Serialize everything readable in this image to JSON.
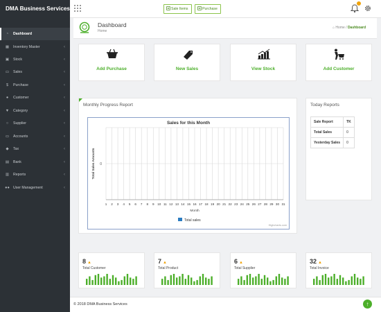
{
  "app": {
    "title": "DMA Business Services"
  },
  "topbar": {
    "sale_items_label": "Sale Items",
    "purchase_label": "Purchase"
  },
  "sidebar": {
    "items": [
      {
        "label": "Dashboard",
        "icon": "tachometer-icon",
        "active": true
      },
      {
        "label": "Inventory Master",
        "icon": "grid-icon",
        "has_children": true
      },
      {
        "label": "Stock",
        "icon": "cubes-icon",
        "has_children": true
      },
      {
        "label": "Sales",
        "icon": "cash-icon",
        "has_children": true
      },
      {
        "label": "Purchase",
        "icon": "dollar-icon",
        "has_children": true
      },
      {
        "label": "Customer",
        "icon": "user-icon",
        "has_children": true
      },
      {
        "label": "Category",
        "icon": "filter-icon",
        "has_children": true
      },
      {
        "label": "Supplier",
        "icon": "user-outline-icon",
        "has_children": true
      },
      {
        "label": "Accounts",
        "icon": "money-icon",
        "has_children": true
      },
      {
        "label": "Tax",
        "icon": "tag-icon",
        "has_children": true
      },
      {
        "label": "Bank",
        "icon": "bank-icon",
        "has_children": true
      },
      {
        "label": "Reports",
        "icon": "bar-chart-icon",
        "has_children": true
      },
      {
        "label": "User Management",
        "icon": "users-icon",
        "has_children": true
      }
    ]
  },
  "header": {
    "title": "Dashboard",
    "subtitle": "Home",
    "breadcrumb_home": "Home",
    "breadcrumb_current": "Dashboard"
  },
  "quick_actions": [
    {
      "label": "Add Purchase",
      "icon": "basket-icon"
    },
    {
      "label": "New Sales",
      "icon": "price-tag-icon"
    },
    {
      "label": "View Stock",
      "icon": "stock-chart-icon"
    },
    {
      "label": "Add Customer",
      "icon": "customer-cart-icon"
    }
  ],
  "monthly_progress": {
    "title": "Monthly Progress Report",
    "credit": "Highcharts.com"
  },
  "chart_data": {
    "type": "line",
    "title": "Sales for this Month",
    "xlabel": "Month",
    "ylabel": "Total Sales Amounts",
    "categories": [
      "1",
      "2",
      "3",
      "4",
      "5",
      "6",
      "7",
      "8",
      "9",
      "10",
      "11",
      "12",
      "13",
      "14",
      "15",
      "16",
      "17",
      "18",
      "19",
      "20",
      "21",
      "22",
      "23",
      "24",
      "25",
      "26",
      "27",
      "28",
      "29",
      "30",
      "31"
    ],
    "series": [
      {
        "name": "Total sales",
        "values": [
          0,
          0,
          0,
          0,
          0,
          0,
          0,
          0,
          0,
          0,
          0,
          0,
          0,
          0,
          0,
          0,
          0,
          0,
          0,
          0,
          0,
          0,
          0,
          0,
          0,
          0,
          0,
          0,
          0,
          0,
          0
        ],
        "color": "#2b7cc1"
      }
    ],
    "y_ticks": [
      "0"
    ],
    "grid": true,
    "legend": "bottom-center"
  },
  "today_reports": {
    "title": "Today Reports",
    "header": [
      "Sale Report",
      "TK"
    ],
    "rows": [
      [
        "Total Sales",
        "0"
      ],
      [
        "Yesterday Sales",
        "0"
      ]
    ]
  },
  "stats": [
    {
      "value": "8",
      "label": "Total Customer",
      "spark": [
        5,
        7,
        4,
        8,
        9,
        6,
        7,
        9,
        5,
        8,
        6,
        3,
        4,
        7,
        9,
        6,
        5,
        7
      ]
    },
    {
      "value": "7",
      "label": "Total Product",
      "spark": [
        5,
        7,
        4,
        8,
        9,
        6,
        7,
        9,
        5,
        8,
        6,
        3,
        4,
        7,
        9,
        6,
        5,
        7
      ]
    },
    {
      "value": "6",
      "label": "Total Supplier",
      "spark": [
        5,
        7,
        4,
        8,
        9,
        6,
        7,
        9,
        5,
        8,
        6,
        3,
        4,
        7,
        9,
        6,
        5,
        7
      ]
    },
    {
      "value": "32",
      "label": "Total Invoice",
      "spark": [
        5,
        7,
        4,
        8,
        9,
        6,
        7,
        9,
        5,
        8,
        6,
        3,
        4,
        7,
        9,
        6,
        5,
        7
      ]
    }
  ],
  "colors": {
    "accent": "#4caf2a",
    "sidebar": "#2c3136",
    "warning": "#f0a30a",
    "series": "#2b7cc1"
  },
  "footer": {
    "text": "© 2018 DMA Business Services"
  }
}
